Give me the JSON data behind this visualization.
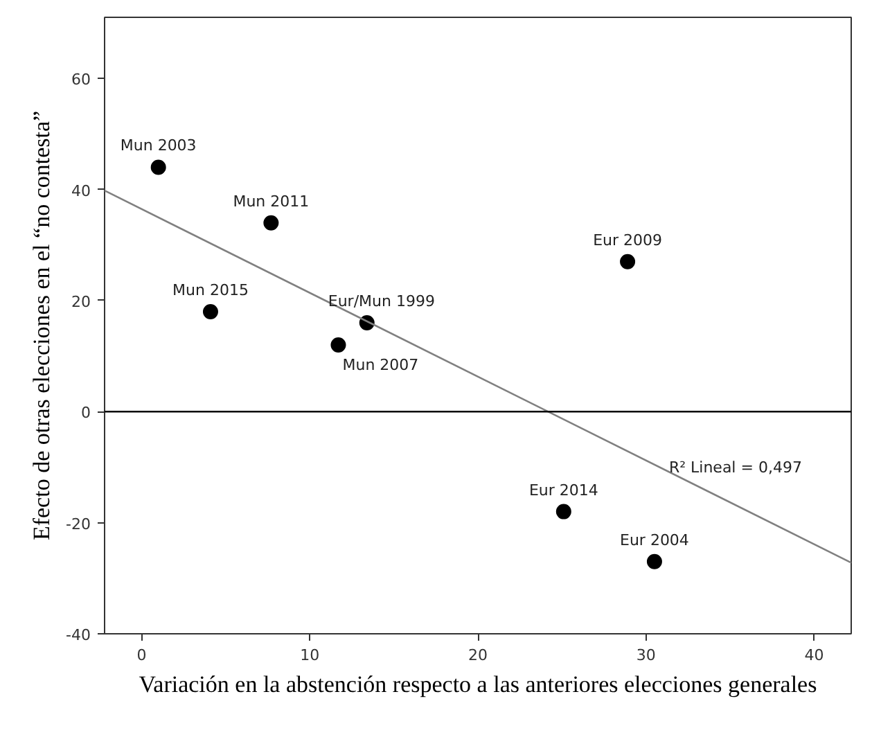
{
  "chart_data": {
    "type": "scatter",
    "xlabel": "Variación en la abstención respecto a las anteriores elecciones generales",
    "ylabel": "Efecto de otras elecciones en el “no contesta”",
    "xlim": [
      -2.2,
      42.2
    ],
    "ylim": [
      -40,
      71
    ],
    "xticks": [
      0,
      10,
      20,
      30,
      40
    ],
    "yticks": [
      -40,
      -20,
      0,
      20,
      40,
      60
    ],
    "grid": false,
    "series": [
      {
        "marker": "circle",
        "color": "#000000",
        "x": [
          1.0,
          7.7,
          4.1,
          13.4,
          11.7,
          28.9,
          25.1,
          30.5
        ],
        "values": [
          44,
          34,
          18,
          16,
          12,
          27,
          -18,
          -27
        ]
      },
      {
        "type": "line",
        "color": "#808080",
        "x": [
          -2.2,
          42.2
        ],
        "values": [
          39.8,
          -27.2
        ]
      }
    ],
    "ref_lines": [
      {
        "axis": "y",
        "value": 0,
        "color": "#000000"
      }
    ],
    "annotations": [
      {
        "text": "Mun 2003",
        "x": 1.0,
        "y": 44
      },
      {
        "text": "Mun 2011",
        "x": 7.7,
        "y": 34
      },
      {
        "text": "Mun 2015",
        "x": 4.1,
        "y": 18
      },
      {
        "text": "Eur/Mun 1999",
        "x": 13.4,
        "y": 16
      },
      {
        "text": "Mun 2007",
        "x": 11.7,
        "y": 12
      },
      {
        "text": "Eur 2009",
        "x": 28.9,
        "y": 27
      },
      {
        "text": "Eur 2014",
        "x": 25.1,
        "y": -18
      },
      {
        "text": "Eur 2004",
        "x": 30.5,
        "y": -27
      },
      "R² Lineal = 0,497"
    ]
  }
}
